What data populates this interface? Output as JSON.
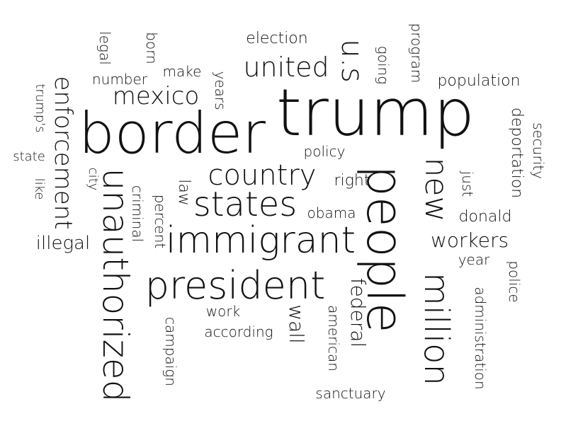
{
  "words": [
    {
      "text": "trump",
      "vertical": false
    },
    {
      "text": "border",
      "vertical": false
    },
    {
      "text": "people",
      "vertical": true
    },
    {
      "text": "unauthorized",
      "vertical": true
    },
    {
      "text": "president",
      "vertical": false
    },
    {
      "text": "immigrant",
      "vertical": false
    },
    {
      "text": "million",
      "vertical": true
    },
    {
      "text": "states",
      "vertical": false
    },
    {
      "text": "new",
      "vertical": true
    },
    {
      "text": "country",
      "vertical": false
    },
    {
      "text": "mexico",
      "vertical": false
    },
    {
      "text": "u.s",
      "vertical": true
    },
    {
      "text": "united",
      "vertical": false
    },
    {
      "text": "enforcement",
      "vertical": true
    },
    {
      "text": "workers",
      "vertical": false
    },
    {
      "text": "federal",
      "vertical": true
    },
    {
      "text": "wall",
      "vertical": true
    },
    {
      "text": "illegal",
      "vertical": false
    },
    {
      "text": "election",
      "vertical": false
    },
    {
      "text": "population",
      "vertical": false
    },
    {
      "text": "deportation",
      "vertical": true
    },
    {
      "text": "security",
      "vertical": true
    },
    {
      "text": "donald",
      "vertical": false
    },
    {
      "text": "administration",
      "vertical": true
    },
    {
      "text": "police",
      "vertical": true
    },
    {
      "text": "year",
      "vertical": false
    },
    {
      "text": "just",
      "vertical": true
    },
    {
      "text": "obama",
      "vertical": false
    },
    {
      "text": "right",
      "vertical": false
    },
    {
      "text": "policy",
      "vertical": false
    },
    {
      "text": "law",
      "vertical": true
    },
    {
      "text": "percent",
      "vertical": true
    },
    {
      "text": "criminal",
      "vertical": true
    },
    {
      "text": "city",
      "vertical": true
    },
    {
      "text": "like",
      "vertical": true
    },
    {
      "text": "state",
      "vertical": false
    },
    {
      "text": "trump's",
      "vertical": true
    },
    {
      "text": "legal",
      "vertical": true
    },
    {
      "text": "born",
      "vertical": true
    },
    {
      "text": "number",
      "vertical": false
    },
    {
      "text": "make",
      "vertical": false
    },
    {
      "text": "years",
      "vertical": true
    },
    {
      "text": "going",
      "vertical": true
    },
    {
      "text": "program",
      "vertical": true
    },
    {
      "text": "work",
      "vertical": false
    },
    {
      "text": "according",
      "vertical": false
    },
    {
      "text": "campaign",
      "vertical": true
    },
    {
      "text": "american",
      "vertical": true
    },
    {
      "text": "sanctuary",
      "vertical": false
    }
  ]
}
